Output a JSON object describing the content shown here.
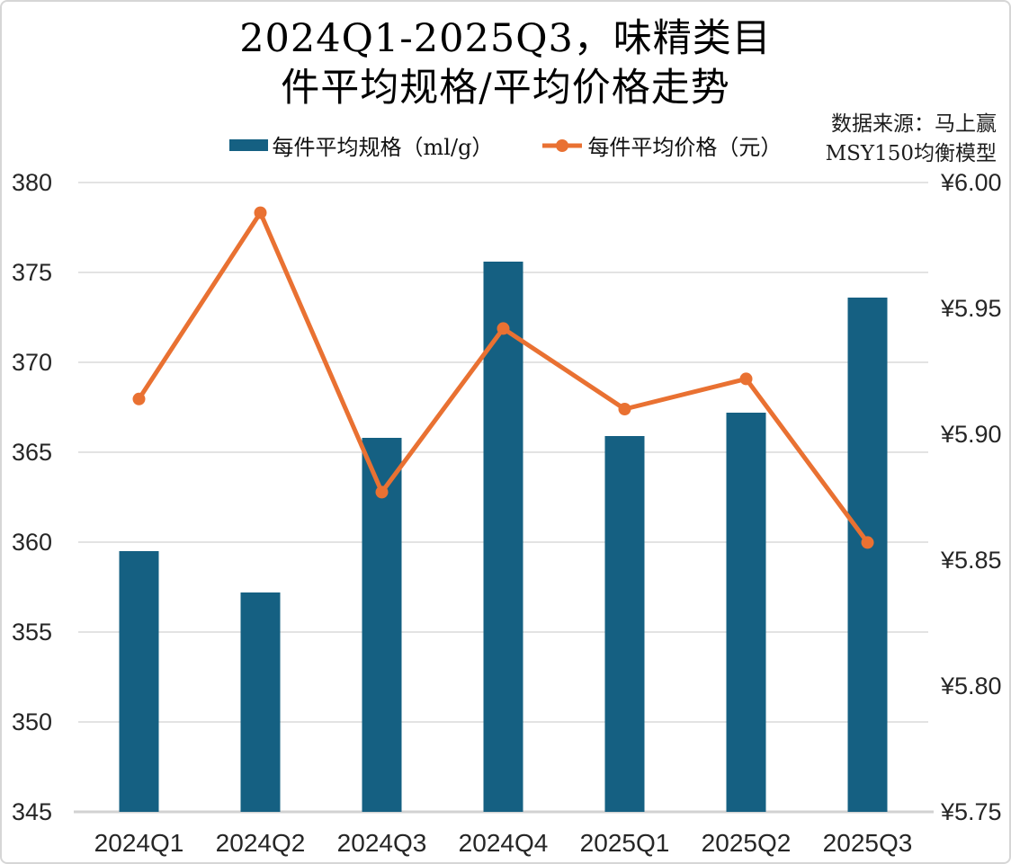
{
  "title": {
    "line1": "2024Q1-2025Q3，味精类目",
    "line2": "件平均规格/平均价格走势"
  },
  "source": {
    "line1": "数据来源：马上赢",
    "line2": "MSY150均衡模型"
  },
  "legend": {
    "spec_label": "每件平均规格（ml/g）",
    "price_label": "每件平均价格（元）"
  },
  "colors": {
    "bar": "#156082",
    "line": "#E97132",
    "grid": "#DADADA",
    "axis_line": "#D2D2D2",
    "tick_text": "#262626",
    "category_text": "#262626"
  },
  "chart_data": {
    "type": "combo",
    "title": "2024Q1-2025Q3，味精类目件平均规格/平均价格走势",
    "categories": [
      "2024Q1",
      "2024Q2",
      "2024Q3",
      "2024Q4",
      "2025Q1",
      "2025Q2",
      "2025Q3"
    ],
    "series": [
      {
        "name": "每件平均规格（ml/g）",
        "type": "bar",
        "axis": "left",
        "values": [
          359.5,
          357.2,
          365.8,
          375.6,
          365.9,
          367.2,
          373.6
        ]
      },
      {
        "name": "每件平均价格（元）",
        "type": "line",
        "axis": "right",
        "values": [
          5.914,
          5.988,
          5.877,
          5.942,
          5.91,
          5.922,
          5.857
        ]
      }
    ],
    "left_axis": {
      "min": 345,
      "max": 380,
      "step": 5,
      "tick_labels": [
        "380",
        "375",
        "370",
        "365",
        "360",
        "355",
        "350",
        "345"
      ]
    },
    "right_axis": {
      "min": 5.75,
      "max": 6.0,
      "step": 0.05,
      "tick_labels": [
        "¥6.00",
        "¥5.95",
        "¥5.90",
        "¥5.85",
        "¥5.80",
        "¥5.75"
      ]
    },
    "grid": "horizontal",
    "legend_position": "top"
  }
}
